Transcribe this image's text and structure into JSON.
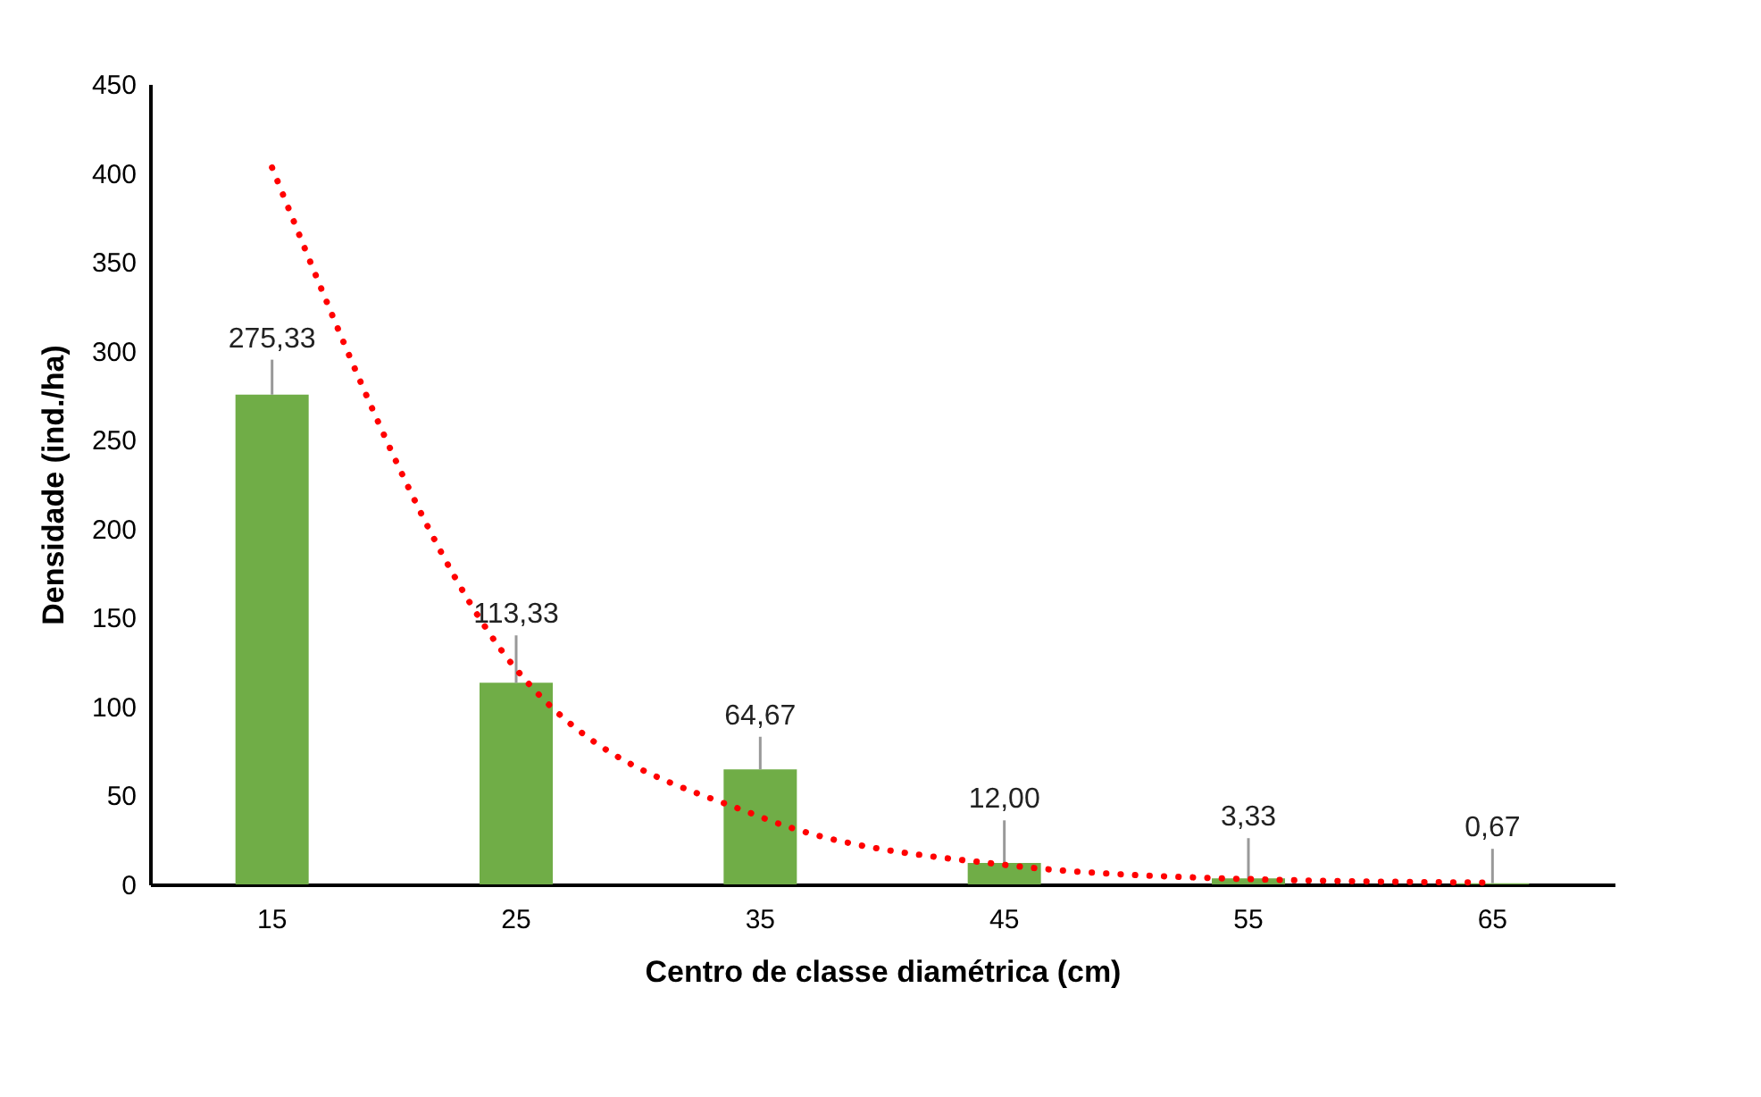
{
  "chart_data": {
    "type": "bar",
    "xlabel": "Centro de classe diamétrica (cm)",
    "ylabel": "Densidade (ind./ha)",
    "categories": [
      "15",
      "25",
      "35",
      "45",
      "55",
      "65"
    ],
    "series": [
      {
        "color": "#70ad47",
        "values": [
          275.33,
          113.33,
          64.67,
          12.0,
          3.33,
          0.67
        ],
        "errors": [
          [
            275.33,
            295
          ],
          [
            113.33,
            140
          ],
          [
            64.67,
            83
          ],
          [
            12.0,
            36
          ],
          [
            3.33,
            26
          ],
          [
            0.67,
            20
          ]
        ],
        "value_labels": [
          "275,33",
          "113,33",
          "64,67",
          "12,00",
          "3,33",
          "0,67"
        ]
      },
      {
        "type": "line",
        "color": "#ff0000",
        "line_style": "dotted",
        "values": [
          403,
          121,
          38,
          11,
          3,
          1
        ]
      }
    ],
    "ylim": [
      0,
      450
    ],
    "yticks": [
      0,
      50,
      100,
      150,
      200,
      250,
      300,
      350,
      400,
      450
    ]
  }
}
